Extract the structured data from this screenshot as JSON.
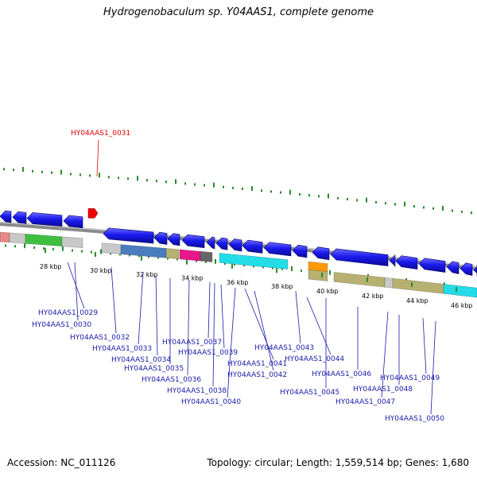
{
  "title": "Hydrogenobaculum sp. Y04AAS1, complete genome",
  "footer": {
    "accession": "Accession: NC_011126",
    "topology": "Topology: circular; Length: 1,559,514 bp; Genes: 1,680"
  },
  "highlighted_label": "HY04AAS1_0031",
  "kbp_ticks": [
    "28 kbp",
    "30 kbp",
    "32 kbp",
    "34 kbp",
    "36 kbp",
    "38 kbp",
    "40 kbp",
    "42 kbp",
    "44 kbp",
    "46 kbp"
  ],
  "gene_labels": [
    "HY04AAS1_0029",
    "HY04AAS1_0030",
    "HY04AAS1_0032",
    "HY04AAS1_0033",
    "HY04AAS1_0034",
    "HY04AAS1_0035",
    "HY04AAS1_0036",
    "HY04AAS1_0037",
    "HY04AAS1_0038",
    "HY04AAS1_0039",
    "HY04AAS1_0040",
    "HY04AAS1_0041",
    "HY04AAS1_0042",
    "HY04AAS1_0043",
    "HY04AAS1_0044",
    "HY04AAS1_0045",
    "HY04AAS1_0046",
    "HY04AAS1_0047",
    "HY04AAS1_0048",
    "HY04AAS1_0049",
    "HY04AAS1_0050"
  ],
  "colors": {
    "gene_blue": "#1a1aee",
    "label_blue": "#1a1aaa",
    "highlight_red": "#dd0000",
    "tick_green": "#2a8a2a",
    "backbone_grey": "#8a8a8a"
  }
}
